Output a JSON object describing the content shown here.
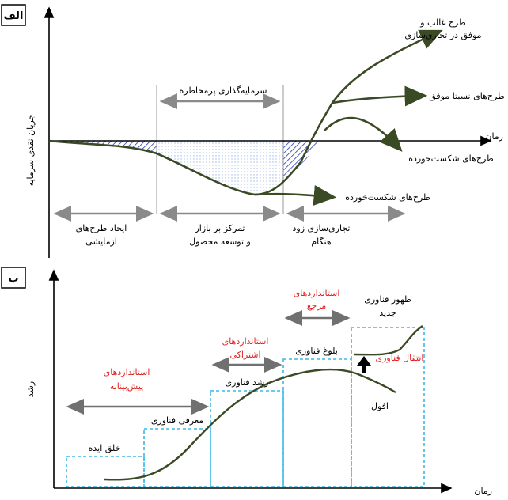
{
  "panel_a": {
    "tag": "الف",
    "y_axis_label": "جریان نقدی سرمایه",
    "x_axis_label": "زمان",
    "high_risk_label": "سرمایه‌گذاری پرمخاطره",
    "outcomes": {
      "dominant_1": "طرح غالب و",
      "dominant_2": "موفق در تجاری‌سازی",
      "relative": "طرح‌های نسبتا موفق",
      "failed_upper": "طرح‌های شکست‌خورده",
      "failed_lower": "طرح‌های شکست‌خورده"
    },
    "phases": {
      "p1_line1": "ایجاد طرح‌های",
      "p1_line2": "آزمایشی",
      "p2_line1": "تمرکز بر بازار",
      "p2_line2": "و توسعه محصول",
      "p3_line1": "تجاری‌سازی زود",
      "p3_line2": "هنگام"
    },
    "colors": {
      "curve": "#3a4a25",
      "hatch": "#2a3aa8",
      "arrow": "#8a8a8a"
    }
  },
  "panel_b": {
    "tag": "ب",
    "y_axis_label": "رشد",
    "x_axis_label": "زمان",
    "stages": {
      "idea": "خلق ایده",
      "intro": "معرفی فناوری",
      "growth": "رشد فناوری",
      "maturity": "بلوغ فناوری",
      "decline": "افول",
      "new_tech_1": "ظهور فناوری",
      "new_tech_2": "جدید"
    },
    "standards": {
      "pre_1": "استانداردهای",
      "pre_2": "پیش‌بینانه",
      "part_1": "استانداردهای",
      "part_2": "اشتراکی",
      "ref_1": "استانداردهای",
      "ref_2": "مرجع",
      "transfer": "انتقال فناوری"
    },
    "colors": {
      "box": "#3fb8e6",
      "red": "#e02020",
      "curve": "#3a4a25"
    }
  }
}
